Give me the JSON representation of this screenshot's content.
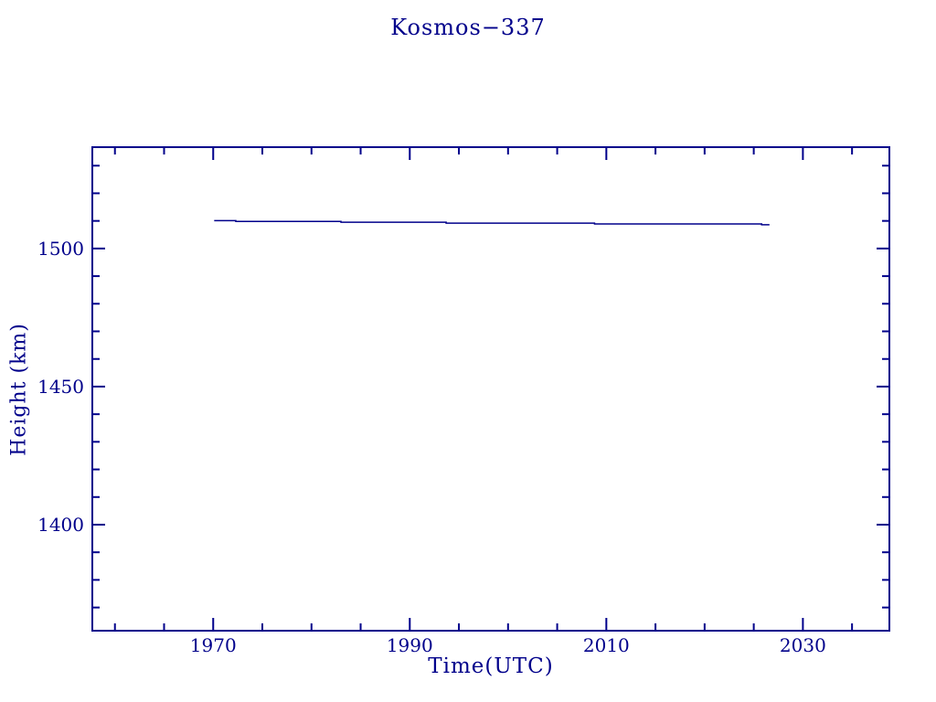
{
  "page": {
    "background_color": "#ffffff",
    "accent_color": "#00008B"
  },
  "chart_data": {
    "type": "line",
    "title": "Kosmos−337",
    "xlabel": "Time(UTC)",
    "ylabel": "Height (km)",
    "line_color": "#00008B",
    "axis_color": "#00008B",
    "grid": false,
    "legend": false,
    "xlim": [
      1957.7,
      2038.8
    ],
    "ylim": [
      1361.6,
      1536.7
    ],
    "x_major_ticks": [
      {
        "value": 1970,
        "label": "1970"
      },
      {
        "value": 1990,
        "label": "1990"
      },
      {
        "value": 2010,
        "label": "2010"
      },
      {
        "value": 2030,
        "label": "2030"
      }
    ],
    "x_minor_ticks": [
      1960,
      1965,
      1975,
      1980,
      1985,
      1995,
      2000,
      2005,
      2015,
      2020,
      2025,
      2035
    ],
    "y_major_ticks": [
      {
        "value": 1400,
        "label": "1400"
      },
      {
        "value": 1450,
        "label": "1450"
      },
      {
        "value": 1500,
        "label": "1500"
      }
    ],
    "y_minor_ticks": [
      1370,
      1380,
      1390,
      1410,
      1420,
      1430,
      1440,
      1460,
      1470,
      1480,
      1490,
      1510,
      1520,
      1530
    ],
    "series": [
      {
        "name": "height",
        "points": [
          [
            1970.1,
            1510.1
          ],
          [
            1972.3,
            1510.1
          ],
          [
            1972.3,
            1509.8
          ],
          [
            1983.0,
            1509.8
          ],
          [
            1983.0,
            1509.5
          ],
          [
            1993.7,
            1509.5
          ],
          [
            1993.7,
            1509.2
          ],
          [
            2008.8,
            1509.2
          ],
          [
            2008.8,
            1508.9
          ],
          [
            2025.8,
            1508.9
          ],
          [
            2025.8,
            1508.6
          ],
          [
            2026.6,
            1508.6
          ]
        ]
      }
    ]
  }
}
